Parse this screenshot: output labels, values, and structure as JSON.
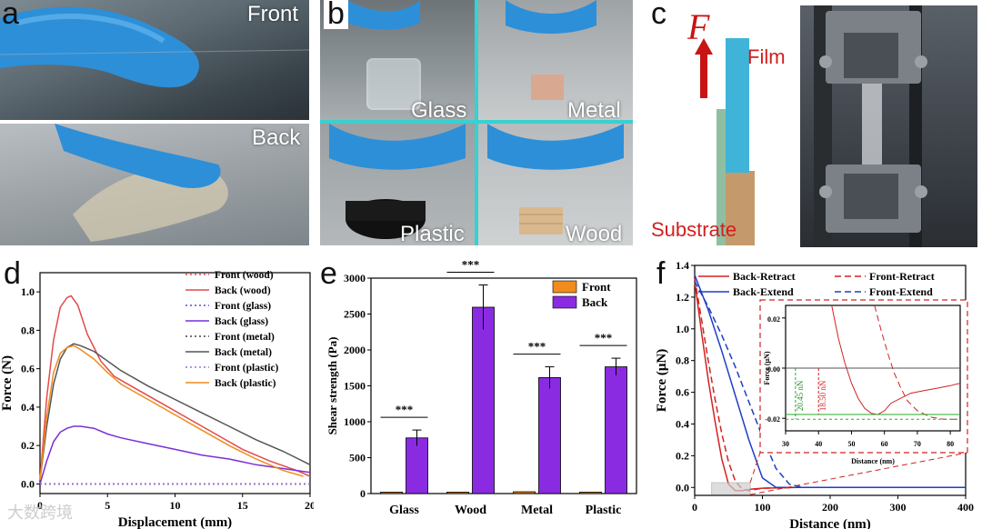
{
  "panels": {
    "a": {
      "label": "a",
      "top_caption": "Front",
      "bottom_caption": "Back"
    },
    "b": {
      "label": "b",
      "captions": [
        "Glass",
        "Metal",
        "Plastic",
        "Wood"
      ]
    },
    "c": {
      "label": "c",
      "force_symbol": "F",
      "film_label": "Film",
      "substrate_label": "Substrate"
    },
    "d": {
      "label": "d"
    },
    "e": {
      "label": "e"
    },
    "f": {
      "label": "f"
    }
  },
  "watermark": "大数跨境",
  "chart_data": [
    {
      "panel": "d",
      "type": "line",
      "xlabel": "Displacement (mm)",
      "ylabel": "Force (N)",
      "xlim": [
        0,
        20
      ],
      "ylim": [
        -0.05,
        1.1
      ],
      "xticks": [
        "0",
        "5",
        "10",
        "15",
        "20"
      ],
      "yticks": [
        "0.0",
        "0.2",
        "0.4",
        "0.6",
        "0.8",
        "1.0"
      ],
      "legend_position": "top-right",
      "series": [
        {
          "name": "Front (wood)",
          "color": "#e34a4a",
          "dash": "dotted",
          "x": [
            0,
            20
          ],
          "y": [
            0,
            0
          ]
        },
        {
          "name": "Back (wood)",
          "color": "#e34a4a",
          "dash": "solid",
          "x": [
            0,
            0.5,
            1,
            1.5,
            2,
            2.3,
            2.8,
            3.5,
            4.5,
            5.5,
            7,
            9,
            11,
            13,
            15,
            17,
            19,
            20
          ],
          "y": [
            0.02,
            0.45,
            0.75,
            0.92,
            0.97,
            0.98,
            0.93,
            0.78,
            0.64,
            0.56,
            0.5,
            0.42,
            0.34,
            0.26,
            0.18,
            0.12,
            0.07,
            0.04
          ]
        },
        {
          "name": "Front (glass)",
          "color": "#6b3fd6",
          "dash": "dotted",
          "x": [
            0,
            20
          ],
          "y": [
            0,
            0
          ]
        },
        {
          "name": "Back (glass)",
          "color": "#7b2fd6",
          "dash": "solid",
          "x": [
            0,
            0.5,
            1,
            1.5,
            2,
            2.5,
            3,
            4,
            5,
            6,
            8,
            10,
            12,
            14,
            16,
            18,
            20
          ],
          "y": [
            0.0,
            0.12,
            0.22,
            0.27,
            0.29,
            0.3,
            0.3,
            0.29,
            0.26,
            0.24,
            0.21,
            0.18,
            0.15,
            0.13,
            0.1,
            0.08,
            0.06
          ]
        },
        {
          "name": "Front (metal)",
          "color": "#444444",
          "dash": "dotted",
          "x": [
            0,
            20
          ],
          "y": [
            0,
            0
          ]
        },
        {
          "name": "Back (metal)",
          "color": "#555555",
          "dash": "solid",
          "x": [
            0,
            0.5,
            1,
            1.5,
            2,
            2.5,
            3,
            4,
            5,
            6,
            8,
            10,
            12,
            14,
            16,
            18,
            20
          ],
          "y": [
            0.02,
            0.3,
            0.52,
            0.65,
            0.71,
            0.73,
            0.72,
            0.69,
            0.64,
            0.59,
            0.51,
            0.44,
            0.37,
            0.3,
            0.23,
            0.17,
            0.1
          ]
        },
        {
          "name": "Front (plastic)",
          "color": "#a06bd6",
          "dash": "dotted",
          "x": [
            0,
            20
          ],
          "y": [
            0,
            0
          ]
        },
        {
          "name": "Back (plastic)",
          "color": "#f08c1c",
          "dash": "solid",
          "x": [
            0,
            0.5,
            1,
            1.5,
            2,
            2.5,
            3,
            4,
            5,
            6,
            8,
            10,
            12,
            14,
            16,
            18,
            19.5
          ],
          "y": [
            0.02,
            0.35,
            0.58,
            0.68,
            0.71,
            0.72,
            0.7,
            0.65,
            0.58,
            0.52,
            0.44,
            0.36,
            0.28,
            0.2,
            0.13,
            0.07,
            0.04
          ]
        }
      ]
    },
    {
      "panel": "e",
      "type": "bar",
      "ylabel": "Shear strength (Pa)",
      "ylim": [
        0,
        3000
      ],
      "yticks": [
        "0",
        "500",
        "1000",
        "1500",
        "2000",
        "2500",
        "3000"
      ],
      "categories": [
        "Glass",
        "Wood",
        "Metal",
        "Plastic"
      ],
      "series": [
        {
          "name": "Front",
          "color": "#f08c1c",
          "values": [
            20,
            20,
            25,
            20
          ]
        },
        {
          "name": "Back",
          "color": "#8a2be2",
          "values": [
            775,
            2595,
            1615,
            1765
          ],
          "errors": [
            110,
            310,
            150,
            120
          ]
        }
      ],
      "significance": [
        "***",
        "***",
        "***",
        "***"
      ],
      "legend_position": "top-right"
    },
    {
      "panel": "f",
      "type": "line",
      "xlabel": "Distance (nm)",
      "ylabel": "Force (μN)",
      "xlim": [
        0,
        400
      ],
      "ylim": [
        -0.05,
        1.4
      ],
      "xticks": [
        "0",
        "100",
        "200",
        "300",
        "400"
      ],
      "yticks": [
        "0.0",
        "0.2",
        "0.4",
        "0.6",
        "0.8",
        "1.0",
        "1.2",
        "1.4"
      ],
      "legend_position": "top",
      "series": [
        {
          "name": "Back-Retract",
          "color": "#d32222",
          "dash": "solid",
          "x": [
            0,
            10,
            20,
            30,
            40,
            50,
            60,
            70,
            85,
            100,
            150,
            200,
            300,
            400
          ],
          "y": [
            1.3,
            0.98,
            0.68,
            0.42,
            0.18,
            0.02,
            -0.02,
            -0.02,
            -0.01,
            -0.005,
            0,
            0,
            0,
            0
          ]
        },
        {
          "name": "Front-Retract",
          "color": "#d32222",
          "dash": "dashed",
          "x": [
            0,
            10,
            20,
            30,
            40,
            50,
            60,
            70,
            80,
            100,
            150,
            200,
            300,
            400
          ],
          "y": [
            1.32,
            1.06,
            0.8,
            0.56,
            0.34,
            0.16,
            0.04,
            -0.01,
            -0.02,
            -0.005,
            0,
            0,
            0,
            0
          ]
        },
        {
          "name": "Back-Extend",
          "color": "#1f3fc4",
          "dash": "solid",
          "x": [
            0,
            20,
            40,
            60,
            80,
            100,
            120,
            150,
            200,
            300,
            400
          ],
          "y": [
            1.34,
            1.12,
            0.86,
            0.58,
            0.3,
            0.06,
            0.0,
            0.0,
            0,
            0,
            0
          ]
        },
        {
          "name": "Front-Extend",
          "color": "#1f3fc4",
          "dash": "dashed",
          "x": [
            0,
            20,
            40,
            60,
            80,
            100,
            120,
            140,
            160,
            200,
            300,
            400
          ],
          "y": [
            1.3,
            1.14,
            0.96,
            0.76,
            0.54,
            0.32,
            0.12,
            0.02,
            0.0,
            0,
            0,
            0
          ]
        }
      ],
      "inset": {
        "xlabel": "Distance (nm)",
        "ylabel": "Force (μN)",
        "xlim": [
          30,
          83
        ],
        "ylim": [
          -0.025,
          0.025
        ],
        "xticks": [
          "30",
          "40",
          "50",
          "60",
          "70",
          "80"
        ],
        "yticks": [
          "-0.02",
          "0.00",
          "0.02"
        ],
        "annotations": [
          "20.45 nN",
          "18.50 nN"
        ],
        "series": [
          {
            "name": "Back-Retract",
            "color": "#d32222",
            "dash": "solid",
            "x": [
              44,
              46,
              48,
              50,
              52,
              54,
              56,
              58,
              60,
              62,
              65,
              68,
              72,
              76,
              80,
              83
            ],
            "y": [
              0.025,
              0.012,
              0.002,
              -0.006,
              -0.012,
              -0.016,
              -0.018,
              -0.0185,
              -0.017,
              -0.014,
              -0.012,
              -0.01,
              -0.009,
              -0.008,
              -0.007,
              -0.006
            ]
          },
          {
            "name": "Front-Retract",
            "color": "#d32222",
            "dash": "dashed",
            "x": [
              57,
              59,
              61,
              63,
              65,
              67,
              70,
              74,
              78,
              83
            ],
            "y": [
              0.025,
              0.015,
              0.006,
              -0.002,
              -0.008,
              -0.013,
              -0.017,
              -0.0195,
              -0.0204,
              -0.0204
            ]
          }
        ]
      }
    }
  ]
}
